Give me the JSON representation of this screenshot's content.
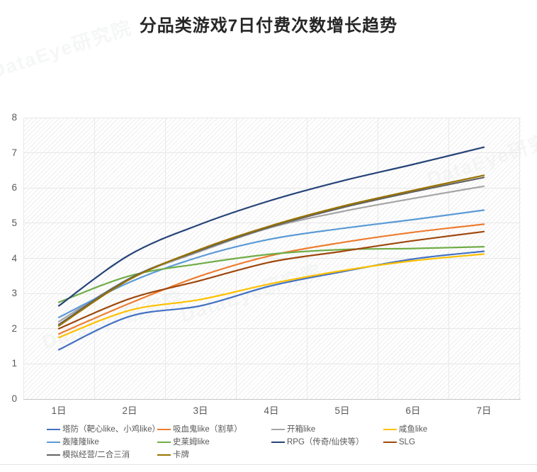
{
  "title": "分品类游戏7日付费次数增长趋势",
  "watermark_text": "DataEye研究院",
  "chart_data": {
    "type": "line",
    "title": "分品类游戏7日付费次数增长趋势",
    "xlabel": "",
    "ylabel": "",
    "categories": [
      "1日",
      "2日",
      "3日",
      "4日",
      "5日",
      "6日",
      "7日"
    ],
    "ylim": [
      0,
      8
    ],
    "yticks": [
      0,
      1,
      2,
      3,
      4,
      5,
      6,
      7,
      8
    ],
    "grid": true,
    "plot_background": "diagonal-hatch",
    "legend_position": "bottom",
    "series": [
      {
        "name": "塔防（靶心like、小鸡like）",
        "color": "#4472C4",
        "values": [
          1.4,
          2.35,
          2.65,
          3.22,
          3.62,
          3.98,
          4.2
        ]
      },
      {
        "name": "吸血鬼like（割草）",
        "color": "#ED7D31",
        "values": [
          1.85,
          2.72,
          3.5,
          4.08,
          4.45,
          4.74,
          4.97
        ]
      },
      {
        "name": "开箱like",
        "color": "#A5A5A5",
        "values": [
          2.2,
          3.42,
          4.2,
          4.88,
          5.33,
          5.7,
          6.05
        ]
      },
      {
        "name": "咸鱼like",
        "color": "#FFC000",
        "values": [
          1.75,
          2.52,
          2.83,
          3.28,
          3.65,
          3.93,
          4.12
        ]
      },
      {
        "name": "轰隆隆like",
        "color": "#5B9BD5",
        "values": [
          2.32,
          3.32,
          4.05,
          4.55,
          4.85,
          5.1,
          5.37
        ]
      },
      {
        "name": "史莱姆like",
        "color": "#70AD47",
        "values": [
          2.75,
          3.5,
          3.85,
          4.12,
          4.25,
          4.28,
          4.33
        ]
      },
      {
        "name": "RPG（传奇/仙侠等）",
        "color": "#264478",
        "values": [
          2.65,
          4.1,
          4.97,
          5.65,
          6.2,
          6.67,
          7.16
        ]
      },
      {
        "name": "SLG",
        "color": "#9E480E",
        "values": [
          2.0,
          2.85,
          3.37,
          3.9,
          4.2,
          4.5,
          4.76
        ]
      },
      {
        "name": "模拟经营/二合三消",
        "color": "#636363",
        "values": [
          2.12,
          3.43,
          4.23,
          4.9,
          5.44,
          5.89,
          6.3
        ]
      },
      {
        "name": "卡牌",
        "color": "#997300",
        "values": [
          2.08,
          3.4,
          4.26,
          4.93,
          5.48,
          5.93,
          6.36
        ]
      }
    ]
  },
  "legend_columns": 4
}
